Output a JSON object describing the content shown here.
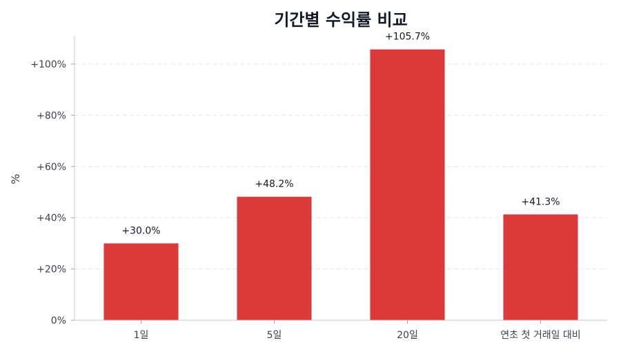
{
  "chart_data": {
    "type": "bar",
    "title": "기간별 수익률 비교",
    "xlabel": "",
    "ylabel": "%",
    "categories": [
      "1일",
      "5일",
      "20일",
      "연초 첫 거래일 대비"
    ],
    "values": [
      30.0,
      48.2,
      105.7,
      41.3
    ],
    "data_labels": [
      "+30.0%",
      "+48.2%",
      "+105.7%",
      "+41.3%"
    ],
    "ylim": [
      0,
      111
    ],
    "yticks": [
      0,
      20,
      40,
      60,
      80,
      100
    ],
    "ytick_labels": [
      "0%",
      "+20%",
      "+40%",
      "+60%",
      "+80%",
      "+100%"
    ],
    "grid": "horizontal dashed",
    "bar_color": "#DC3A3A"
  }
}
